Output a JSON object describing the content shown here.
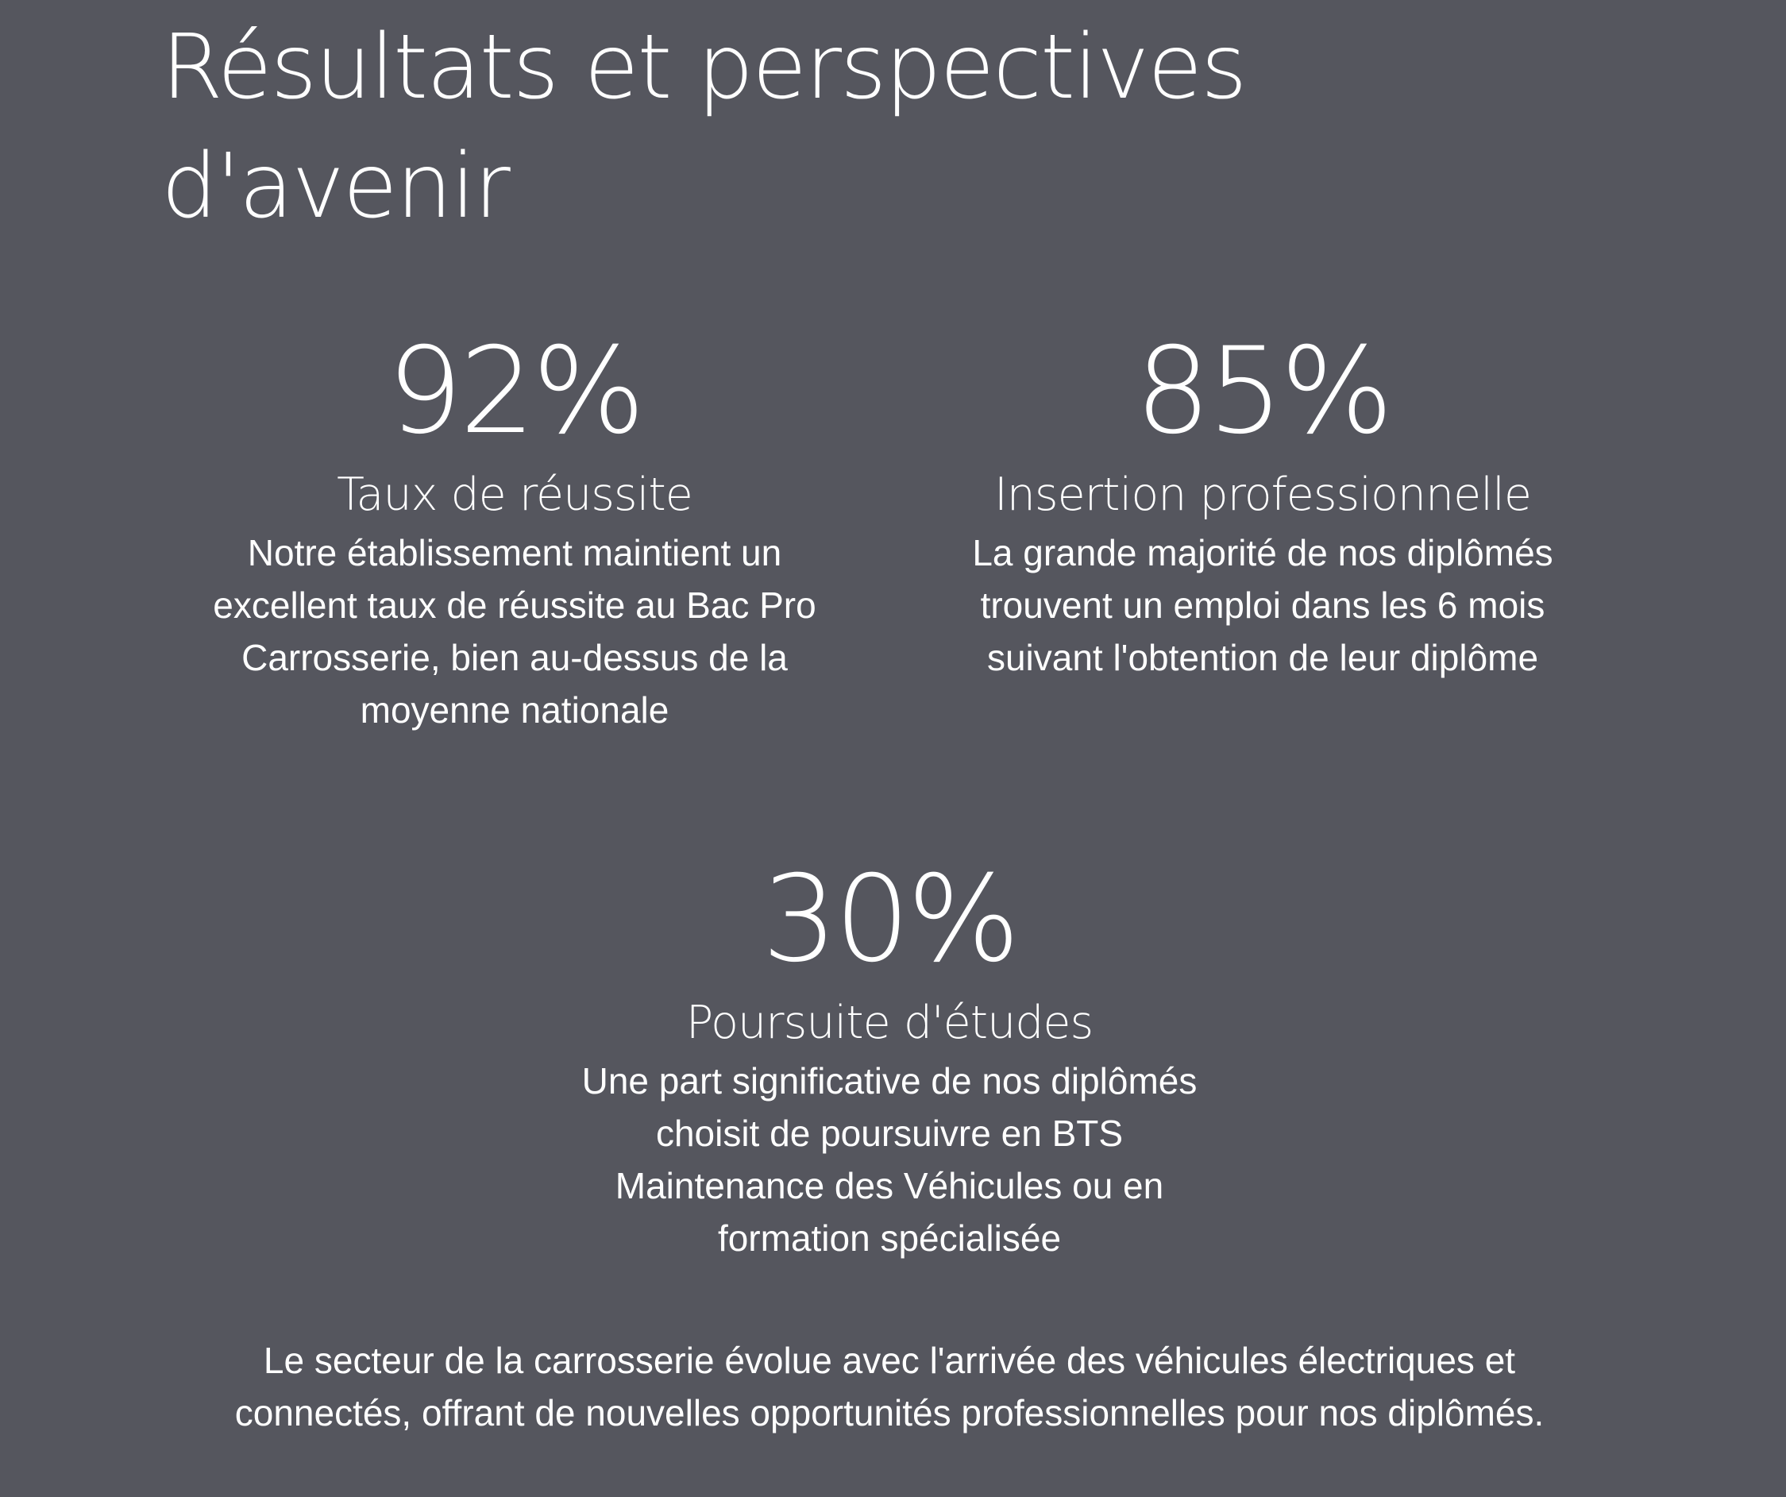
{
  "page": {
    "title_lines": [
      "Résultats et perspectives",
      "d'avenir"
    ],
    "background_color": "#55565e",
    "text_color": "#ffffff"
  },
  "stats": [
    {
      "value": "92%",
      "label": "Taux de réussite",
      "description_lines": [
        "Notre établissement maintient un",
        "excellent taux de réussite au Bac Pro",
        "Carrosserie, bien au-dessus de la",
        "moyenne nationale"
      ]
    },
    {
      "value": "85%",
      "label": "Insertion professionnelle",
      "description_lines": [
        "La grande majorité de nos diplômés",
        "trouvent un emploi dans les 6 mois",
        "suivant l'obtention de leur diplôme"
      ]
    },
    {
      "value": "30%",
      "label": "Poursuite d'études",
      "description_lines": [
        "Une part significative de nos diplômés",
        "choisit de poursuivre en BTS",
        "Maintenance des Véhicules ou en",
        "formation spécialisée"
      ]
    }
  ],
  "closing": {
    "lines": [
      "Le secteur de la carrosserie évolue avec l'arrivée des véhicules électriques et",
      "connectés, offrant de nouvelles opportunités professionnelles pour nos diplômés."
    ]
  }
}
